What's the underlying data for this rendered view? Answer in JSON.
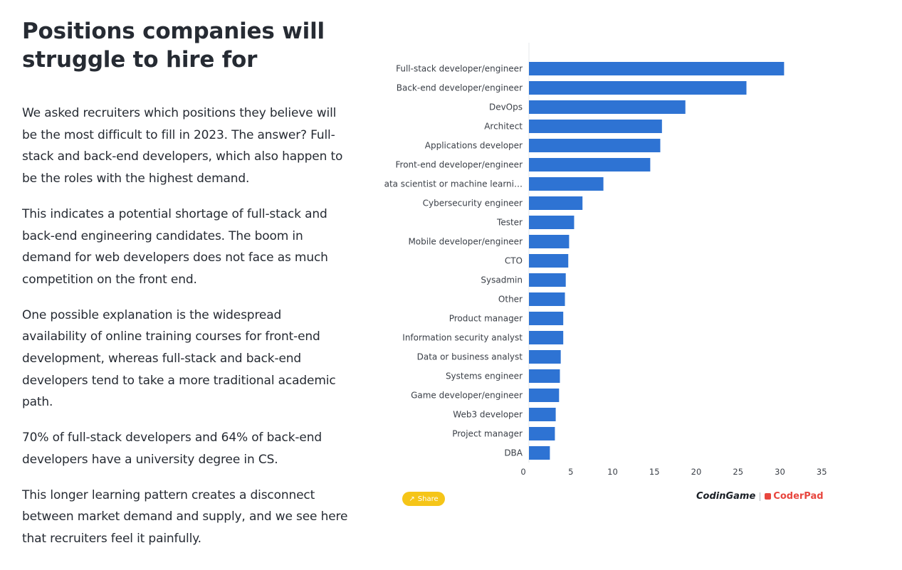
{
  "page": {
    "title": "Positions companies will struggle to hire for",
    "paragraphs": [
      "We asked recruiters which positions they believe will be the most difficult to fill in 2023. The answer? Full-stack and back-end developers, which also happen to be the roles with the highest demand.",
      "This indicates a potential shortage of full-stack and back-end engineering candidates. The boom in demand for web developers does not face as much competition on the front end.",
      "One possible explanation is the widespread availability of online training courses for front-end development, whereas full-stack and back-end developers tend to take a more traditional academic path.",
      "70% of full-stack developers and 64% of back-end developers have a university degree in CS.",
      "This longer learning pattern creates a disconnect between market demand and supply, and we see here that recruiters feel it painfully."
    ]
  },
  "share": {
    "label": "Share",
    "icon": "share-icon"
  },
  "logos": {
    "codingame": "CodinGame",
    "coderpad": "CoderPad",
    "coderpad_icon": "cp"
  },
  "colors": {
    "bar": "#2e73d3",
    "share_bg": "#f5c518",
    "coderpad": "#e8463e"
  },
  "chart_data": {
    "type": "bar",
    "orientation": "horizontal",
    "title": "",
    "xlabel": "",
    "ylabel": "",
    "xlim": [
      0,
      35
    ],
    "xticks": [
      0,
      5,
      10,
      15,
      20,
      25,
      30,
      35
    ],
    "grid": false,
    "categories": [
      "Full-stack developer/engineer",
      "Back-end developer/engineer",
      "DevOps",
      "Architect",
      "Applications developer",
      "Front-end developer/engineer",
      "Data scientist or machine learni…",
      "Cybersecurity engineer",
      "Tester",
      "Mobile developer/engineer",
      "CTO",
      "Sysadmin",
      "Other",
      "Product manager",
      "Information security analyst",
      "Data or business analyst",
      "Systems engineer",
      "Game developer/engineer",
      "Web3 developer",
      "Project manager",
      "DBA"
    ],
    "values": [
      30.5,
      26.0,
      18.7,
      15.9,
      15.7,
      14.5,
      8.9,
      6.4,
      5.4,
      4.8,
      4.7,
      4.4,
      4.3,
      4.1,
      4.1,
      3.8,
      3.7,
      3.6,
      3.2,
      3.1,
      2.5
    ]
  }
}
